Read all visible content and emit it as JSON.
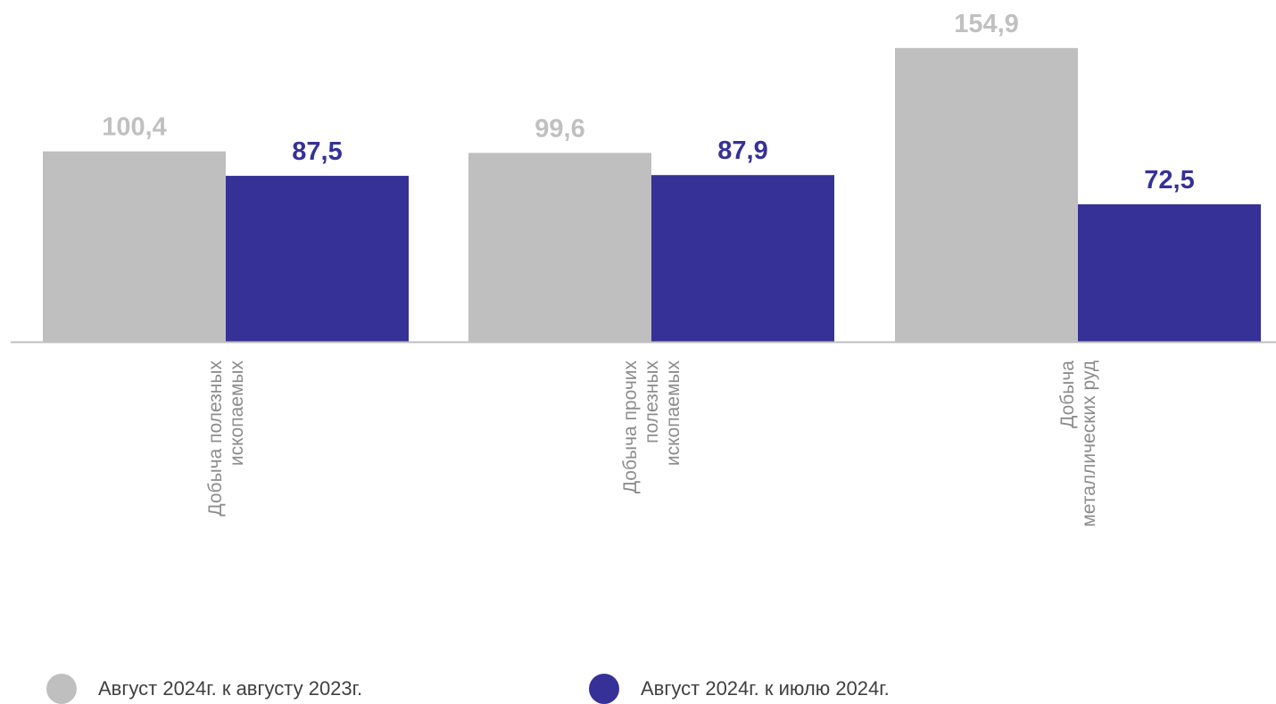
{
  "chart_data": {
    "type": "bar",
    "categories": [
      "Добыча полезных ископаемых",
      "Добыча прочих полезных ископаемых",
      "Добыча металлических руд"
    ],
    "category_lines": [
      [
        "Добыча полезных",
        "ископаемых"
      ],
      [
        "Добыча прочих",
        "полезных",
        "ископаемых"
      ],
      [
        "Добыча",
        "металлических руд"
      ]
    ],
    "series": [
      {
        "name": "Август 2024г. к августу 2023г.",
        "values": [
          100.4,
          99.6,
          154.9
        ],
        "labels": [
          "100,4",
          "99,6",
          "154,9"
        ],
        "color": "#bfbfbf",
        "label_color": "#c0c0c0"
      },
      {
        "name": "Август 2024г. к июлю 2024г.",
        "values": [
          87.5,
          87.9,
          72.5
        ],
        "labels": [
          "87,5",
          "87,9",
          "72,5"
        ],
        "color": "#363196",
        "label_color": "#363196"
      }
    ],
    "ylim": [
      0,
      160
    ],
    "grid": false,
    "legend_position": "bottom",
    "axis_color": "#bfbfbf"
  }
}
